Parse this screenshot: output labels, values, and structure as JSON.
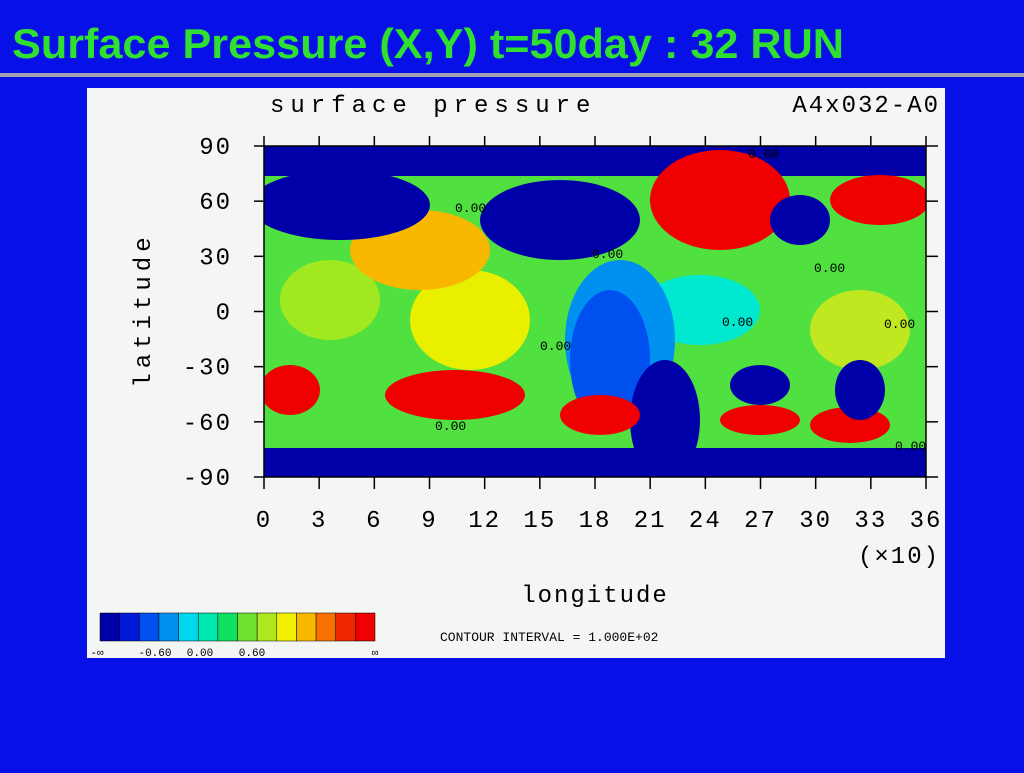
{
  "slide_title": "Surface Pressure (X,Y) t=50day : 32 RUN",
  "chart_data": {
    "type": "contour",
    "title": "surface pressure",
    "subtitle": "A4x032-A0",
    "xlabel": "longitude",
    "ylabel": "latitude",
    "x_multiplier": "(×10)",
    "xlim": [
      0,
      36
    ],
    "ylim": [
      -90,
      90
    ],
    "xticks": [
      0,
      3,
      6,
      9,
      12,
      15,
      18,
      21,
      24,
      27,
      30,
      33,
      36
    ],
    "yticks": [
      90,
      60,
      30,
      0,
      -30,
      -60,
      -90
    ],
    "contour_label": "0.00",
    "contour_interval": "CONTOUR INTERVAL = 1.000E+02",
    "colorbar": {
      "colors": [
        "#0000a8",
        "#0018d8",
        "#0050f0",
        "#0090f0",
        "#00d8f0",
        "#00e8b0",
        "#10e060",
        "#70e030",
        "#b0e820",
        "#f0f000",
        "#f8b800",
        "#f87000",
        "#f02800",
        "#f00000"
      ],
      "labels": [
        "-∞",
        "-0.60",
        "0.00",
        "0.60",
        "∞"
      ]
    }
  }
}
